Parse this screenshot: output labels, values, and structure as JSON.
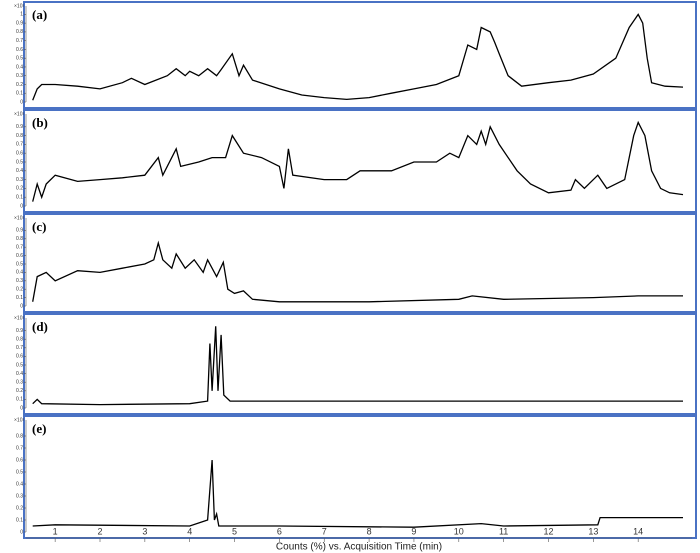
{
  "chart_data": [
    {
      "type": "line",
      "title": "(a)",
      "multiplier": "×10¹",
      "color": "#000000",
      "xlim": [
        0.35,
        15.2
      ],
      "ylim": [
        0,
        1.05
      ],
      "yticks": [
        0,
        0.1,
        0.2,
        0.3,
        0.4,
        0.5,
        0.6,
        0.7,
        0.8,
        0.9,
        1
      ],
      "x": [
        0.5,
        0.6,
        0.7,
        1.0,
        1.5,
        2.0,
        2.5,
        2.7,
        3.0,
        3.5,
        3.7,
        3.9,
        4.0,
        4.2,
        4.4,
        4.6,
        4.7,
        4.95,
        5.1,
        5.2,
        5.4,
        6.0,
        6.5,
        7.0,
        7.5,
        8.0,
        8.5,
        9.0,
        9.5,
        10.0,
        10.2,
        10.4,
        10.5,
        10.7,
        10.8,
        10.9,
        11.1,
        11.4,
        12.0,
        12.5,
        13.0,
        13.5,
        13.8,
        14.0,
        14.1,
        14.2,
        14.3,
        14.6,
        15.0
      ],
      "values": [
        0.02,
        0.15,
        0.2,
        0.2,
        0.18,
        0.15,
        0.22,
        0.27,
        0.2,
        0.3,
        0.38,
        0.3,
        0.35,
        0.3,
        0.38,
        0.3,
        0.37,
        0.55,
        0.3,
        0.42,
        0.25,
        0.15,
        0.08,
        0.05,
        0.03,
        0.05,
        0.1,
        0.15,
        0.2,
        0.3,
        0.65,
        0.6,
        0.85,
        0.8,
        0.68,
        0.55,
        0.3,
        0.18,
        0.22,
        0.25,
        0.32,
        0.5,
        0.85,
        1.0,
        0.9,
        0.5,
        0.22,
        0.18,
        0.17
      ]
    },
    {
      "type": "line",
      "title": "(b)",
      "multiplier": "×10¹",
      "color": "#000000",
      "xlim": [
        0.35,
        15.2
      ],
      "ylim": [
        0,
        1
      ],
      "yticks": [
        0,
        0.1,
        0.2,
        0.3,
        0.4,
        0.5,
        0.6,
        0.7,
        0.8,
        0.9
      ],
      "x": [
        0.5,
        0.6,
        0.7,
        0.8,
        1.0,
        1.5,
        2.0,
        2.5,
        3.0,
        3.3,
        3.4,
        3.7,
        3.8,
        4.2,
        4.5,
        4.8,
        4.95,
        5.2,
        5.6,
        6.0,
        6.1,
        6.2,
        6.3,
        7.0,
        7.5,
        7.8,
        8.5,
        9.0,
        9.5,
        9.8,
        10.0,
        10.2,
        10.4,
        10.5,
        10.6,
        10.7,
        10.9,
        11.3,
        11.6,
        12.0,
        12.5,
        12.6,
        12.8,
        13.1,
        13.3,
        13.7,
        13.9,
        14.0,
        14.15,
        14.3,
        14.5,
        14.7,
        15.0
      ],
      "values": [
        0.05,
        0.25,
        0.1,
        0.25,
        0.35,
        0.28,
        0.3,
        0.32,
        0.35,
        0.55,
        0.35,
        0.65,
        0.45,
        0.5,
        0.55,
        0.55,
        0.8,
        0.6,
        0.55,
        0.45,
        0.2,
        0.65,
        0.35,
        0.3,
        0.3,
        0.4,
        0.4,
        0.5,
        0.5,
        0.6,
        0.55,
        0.8,
        0.7,
        0.85,
        0.7,
        0.9,
        0.7,
        0.4,
        0.25,
        0.15,
        0.18,
        0.3,
        0.2,
        0.35,
        0.2,
        0.3,
        0.8,
        0.95,
        0.8,
        0.4,
        0.2,
        0.15,
        0.13
      ]
    },
    {
      "type": "line",
      "title": "(c)",
      "multiplier": "×10¹",
      "color": "#000000",
      "xlim": [
        0.35,
        15.2
      ],
      "ylim": [
        0,
        1
      ],
      "yticks": [
        0,
        0.1,
        0.2,
        0.3,
        0.4,
        0.5,
        0.6,
        0.7,
        0.8,
        0.9
      ],
      "x": [
        0.5,
        0.6,
        0.8,
        1.0,
        1.5,
        2.0,
        2.5,
        3.0,
        3.2,
        3.3,
        3.4,
        3.6,
        3.7,
        3.9,
        4.1,
        4.3,
        4.4,
        4.6,
        4.75,
        4.85,
        5.0,
        5.2,
        5.4,
        6.0,
        8.0,
        10.0,
        10.3,
        11.0,
        13.0,
        14.0,
        15.0
      ],
      "values": [
        0.05,
        0.35,
        0.4,
        0.3,
        0.42,
        0.4,
        0.45,
        0.5,
        0.55,
        0.75,
        0.55,
        0.45,
        0.62,
        0.45,
        0.55,
        0.4,
        0.55,
        0.35,
        0.52,
        0.2,
        0.15,
        0.18,
        0.08,
        0.05,
        0.05,
        0.08,
        0.12,
        0.08,
        0.1,
        0.12,
        0.12
      ]
    },
    {
      "type": "line",
      "title": "(d)",
      "multiplier": "×10¹",
      "color": "#000000",
      "xlim": [
        0.35,
        15.2
      ],
      "ylim": [
        0,
        1
      ],
      "yticks": [
        0,
        0.1,
        0.2,
        0.3,
        0.4,
        0.5,
        0.6,
        0.7,
        0.8,
        0.9
      ],
      "x": [
        0.5,
        0.6,
        0.7,
        2.0,
        4.0,
        4.4,
        4.45,
        4.5,
        4.58,
        4.63,
        4.7,
        4.76,
        4.9,
        6.0,
        15.0
      ],
      "values": [
        0.05,
        0.1,
        0.05,
        0.04,
        0.05,
        0.08,
        0.75,
        0.2,
        0.95,
        0.2,
        0.85,
        0.15,
        0.08,
        0.08,
        0.08
      ]
    },
    {
      "type": "line",
      "title": "(e)",
      "multiplier": "×10¹",
      "color": "#000000",
      "xlim": [
        0.35,
        15.2
      ],
      "ylim": [
        0,
        0.9
      ],
      "yticks": [
        0,
        0.1,
        0.2,
        0.3,
        0.4,
        0.5,
        0.6,
        0.7,
        0.8
      ],
      "x": [
        0.5,
        1.0,
        4.0,
        4.4,
        4.5,
        4.55,
        4.6,
        4.65,
        6.0,
        9.0,
        10.5,
        11.0,
        13.1,
        13.15,
        15.0
      ],
      "values": [
        0.05,
        0.06,
        0.05,
        0.1,
        0.6,
        0.1,
        0.15,
        0.05,
        0.05,
        0.04,
        0.07,
        0.05,
        0.06,
        0.12,
        0.12
      ],
      "xticks": [
        1,
        2,
        3,
        4,
        5,
        6,
        7,
        8,
        9,
        10,
        11,
        12,
        13,
        14
      ],
      "xlabel": "Counts (%) vs. Acquisition Time (min)"
    }
  ]
}
